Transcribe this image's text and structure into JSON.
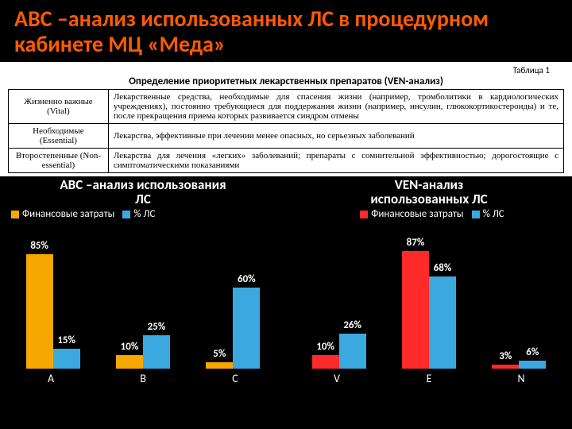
{
  "title": "ABC –анализ использованных ЛС в процедурном кабинете МЦ «Меда»",
  "table": {
    "superlabel": "Таблица 1",
    "caption": "Определение приоритетных лекарственных препаратов (VEN-анализ)",
    "rows": [
      {
        "c0": "Жизненно важные (Vital)",
        "c1": "Лекарственные средства, необходимые для спасения жизни (например, тромболитики в кардиологических учреждениях), постоянно требующиеся для поддержания жизни (например, инсулин, глюкокортикостероиды) и те, после прекращения приема которых развивается синдром отмены"
      },
      {
        "c0": "Необходимые (Essential)",
        "c1": "Лекарства, эффективные при лечении менее опасных, но серьезных заболеваний"
      },
      {
        "c0": "Второстепенные (Non-essential)",
        "c1": "Лекарства для лечения «легких» заболеваний; препараты с сомнительной эффективностью; дорогостоящие с симптоматическими показаниями"
      }
    ]
  },
  "chart_abc": {
    "title_l1": "ABC –анализ использования",
    "title_l2": "ЛС",
    "legend": [
      {
        "label": "Финансовые затраты",
        "color": "#f6a800"
      },
      {
        "label": "% ЛС",
        "color": "#3ba9e0"
      }
    ],
    "ymax": 100,
    "categories": [
      "A",
      "B",
      "C"
    ],
    "series": [
      {
        "color": "#f6a800",
        "values": [
          85,
          10,
          5
        ],
        "labels": [
          "85%",
          "10%",
          "5%"
        ]
      },
      {
        "color": "#3ba9e0",
        "values": [
          15,
          25,
          60
        ],
        "labels": [
          "15%",
          "25%",
          "60%"
        ]
      }
    ]
  },
  "chart_ven": {
    "title_l1": "VEN-анализ",
    "title_l2": "использованных ЛС",
    "legend": [
      {
        "label": "Финансовые затраты",
        "color": "#ff2a2a"
      },
      {
        "label": "% ЛС",
        "color": "#3ba9e0"
      }
    ],
    "ymax": 100,
    "categories": [
      "V",
      "E",
      "N"
    ],
    "series": [
      {
        "color": "#ff2a2a",
        "values": [
          10,
          87,
          3
        ],
        "labels": [
          "10%",
          "87%",
          "3%"
        ]
      },
      {
        "color": "#3ba9e0",
        "values": [
          26,
          68,
          6
        ],
        "labels": [
          "26%",
          "68%",
          "6%"
        ]
      }
    ]
  }
}
